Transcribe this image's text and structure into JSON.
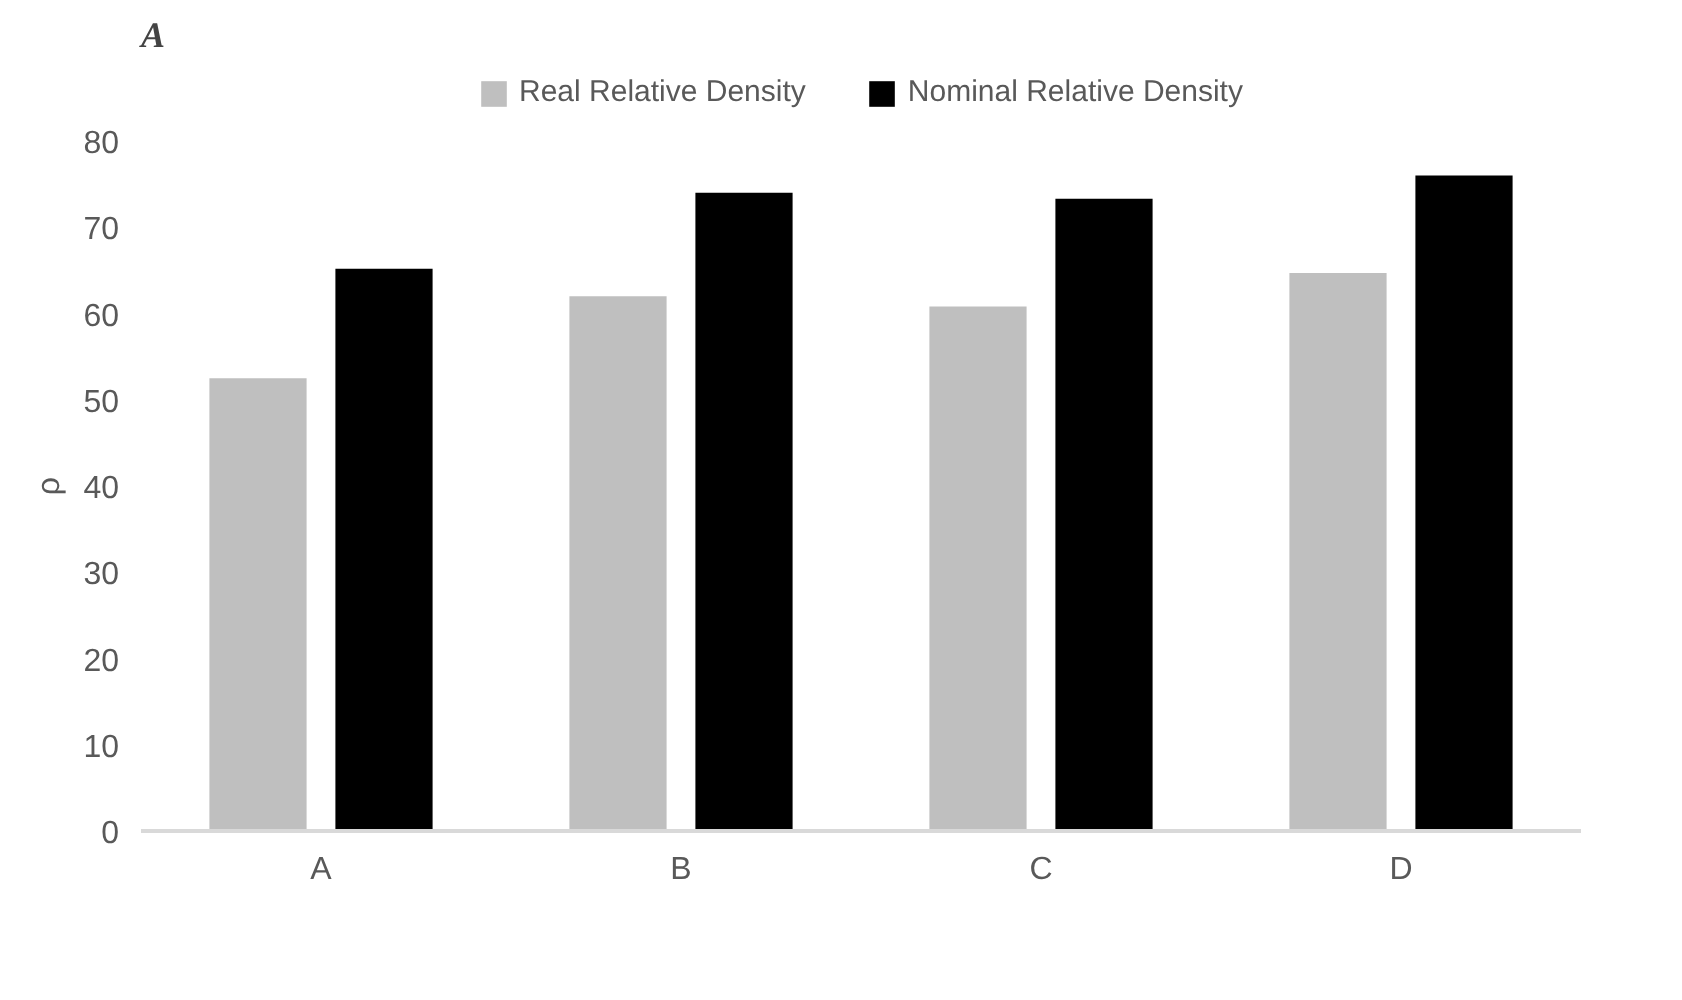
{
  "chart_data": {
    "type": "bar",
    "title": "A",
    "ylabel": "ρ",
    "categories": [
      "A",
      "B",
      "C",
      "D"
    ],
    "series": [
      {
        "name": "Real Relative Density",
        "color": "#bfbfbf",
        "values": [
          52.5,
          62.0,
          60.8,
          64.7
        ]
      },
      {
        "name": "Nominal Relative Density",
        "color": "#000000",
        "values": [
          65.2,
          74.0,
          73.3,
          76.0
        ]
      }
    ],
    "ylim": [
      0,
      80
    ],
    "yticks": [
      0,
      10,
      20,
      30,
      40,
      50,
      60,
      70,
      80
    ],
    "grid": false,
    "legend": "top"
  }
}
